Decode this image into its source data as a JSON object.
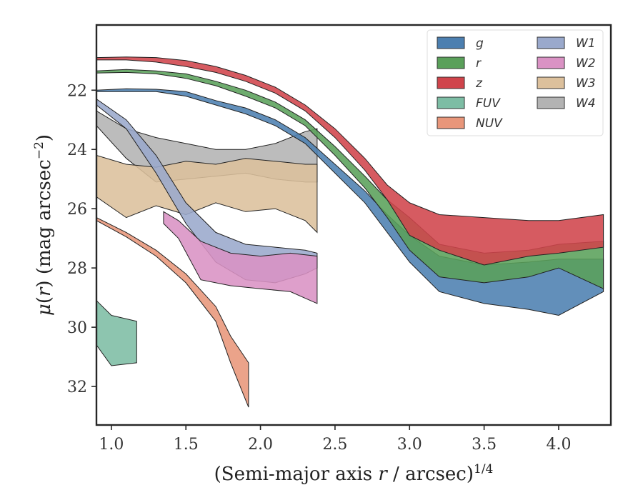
{
  "chart_data": {
    "type": "area",
    "xlabel": "(Semi-major axis r / arcsec)",
    "xlabel_parts": {
      "prefix": "(Semi-major axis ",
      "var": "r",
      "middle": " / arcsec)",
      "sup": "1/4"
    },
    "ylabel_parts": {
      "mu": "μ",
      "open": "(",
      "var": "r",
      "close": ")",
      "unit": " (mag arcsec",
      "sup": "−2",
      "end": ")"
    },
    "xlim": [
      0.9,
      4.35
    ],
    "ylim": [
      33.3,
      19.8
    ],
    "y_inverted": true,
    "xticks": [
      1.0,
      1.5,
      2.0,
      2.5,
      3.0,
      3.5,
      4.0
    ],
    "xtick_labels": [
      "1.0",
      "1.5",
      "2.0",
      "2.5",
      "3.0",
      "3.5",
      "4.0"
    ],
    "yticks": [
      22,
      24,
      26,
      28,
      30,
      32
    ],
    "ytick_labels": [
      "22",
      "24",
      "26",
      "28",
      "30",
      "32"
    ],
    "grid": false,
    "legend": {
      "location": "upper right",
      "columns": 2
    },
    "series": [
      {
        "name": "g",
        "color": "#4c7fb0",
        "upper": [
          [
            0.9,
            22.0
          ],
          [
            1.1,
            21.95
          ],
          [
            1.3,
            21.97
          ],
          [
            1.5,
            22.05
          ],
          [
            1.7,
            22.35
          ],
          [
            1.9,
            22.6
          ],
          [
            2.1,
            23.0
          ],
          [
            2.3,
            23.6
          ],
          [
            2.5,
            24.5
          ],
          [
            2.7,
            25.4
          ],
          [
            2.85,
            26.2
          ],
          [
            3.0,
            26.9
          ],
          [
            3.2,
            27.6
          ],
          [
            3.5,
            27.9
          ],
          [
            3.8,
            27.8
          ],
          [
            4.0,
            27.7
          ],
          [
            4.3,
            27.7
          ]
        ],
        "lower": [
          [
            0.9,
            22.05
          ],
          [
            1.1,
            22.05
          ],
          [
            1.3,
            22.05
          ],
          [
            1.5,
            22.2
          ],
          [
            1.7,
            22.5
          ],
          [
            1.9,
            22.8
          ],
          [
            2.1,
            23.2
          ],
          [
            2.3,
            23.8
          ],
          [
            2.5,
            24.8
          ],
          [
            2.7,
            25.8
          ],
          [
            2.85,
            26.8
          ],
          [
            3.0,
            27.8
          ],
          [
            3.2,
            28.8
          ],
          [
            3.5,
            29.2
          ],
          [
            3.8,
            29.4
          ],
          [
            4.0,
            29.6
          ],
          [
            4.3,
            28.8
          ]
        ]
      },
      {
        "name": "r",
        "color": "#5aa05a",
        "upper": [
          [
            0.9,
            21.35
          ],
          [
            1.1,
            21.3
          ],
          [
            1.3,
            21.35
          ],
          [
            1.5,
            21.45
          ],
          [
            1.7,
            21.7
          ],
          [
            1.9,
            22.0
          ],
          [
            2.1,
            22.4
          ],
          [
            2.3,
            23.0
          ],
          [
            2.5,
            23.9
          ],
          [
            2.7,
            24.9
          ],
          [
            2.85,
            25.7
          ],
          [
            3.0,
            26.3
          ],
          [
            3.2,
            27.2
          ],
          [
            3.5,
            27.5
          ],
          [
            3.8,
            27.4
          ],
          [
            4.0,
            27.2
          ],
          [
            4.3,
            27.1
          ]
        ],
        "lower": [
          [
            0.9,
            21.42
          ],
          [
            1.1,
            21.4
          ],
          [
            1.3,
            21.45
          ],
          [
            1.5,
            21.6
          ],
          [
            1.7,
            21.85
          ],
          [
            1.9,
            22.2
          ],
          [
            2.1,
            22.6
          ],
          [
            2.3,
            23.2
          ],
          [
            2.5,
            24.2
          ],
          [
            2.7,
            25.3
          ],
          [
            2.85,
            26.3
          ],
          [
            3.0,
            27.4
          ],
          [
            3.2,
            28.3
          ],
          [
            3.5,
            28.5
          ],
          [
            3.8,
            28.3
          ],
          [
            4.0,
            28.0
          ],
          [
            4.3,
            28.7
          ]
        ]
      },
      {
        "name": "z",
        "color": "#d0444b",
        "upper": [
          [
            0.9,
            20.9
          ],
          [
            1.1,
            20.88
          ],
          [
            1.3,
            20.9
          ],
          [
            1.5,
            21.0
          ],
          [
            1.7,
            21.2
          ],
          [
            1.9,
            21.5
          ],
          [
            2.1,
            21.9
          ],
          [
            2.3,
            22.5
          ],
          [
            2.5,
            23.3
          ],
          [
            2.7,
            24.3
          ],
          [
            2.85,
            25.2
          ],
          [
            3.0,
            25.8
          ],
          [
            3.2,
            26.2
          ],
          [
            3.5,
            26.3
          ],
          [
            3.8,
            26.4
          ],
          [
            4.0,
            26.4
          ],
          [
            4.3,
            26.2
          ]
        ],
        "lower": [
          [
            0.9,
            20.98
          ],
          [
            1.1,
            20.98
          ],
          [
            1.3,
            21.05
          ],
          [
            1.5,
            21.2
          ],
          [
            1.7,
            21.4
          ],
          [
            1.9,
            21.7
          ],
          [
            2.1,
            22.1
          ],
          [
            2.3,
            22.7
          ],
          [
            2.5,
            23.6
          ],
          [
            2.7,
            24.7
          ],
          [
            2.85,
            25.7
          ],
          [
            3.0,
            26.9
          ],
          [
            3.2,
            27.4
          ],
          [
            3.5,
            27.9
          ],
          [
            3.8,
            27.6
          ],
          [
            4.0,
            27.5
          ],
          [
            4.3,
            27.3
          ]
        ]
      },
      {
        "name": "FUV",
        "color": "#7dbda4",
        "upper": [
          [
            0.9,
            29.1
          ],
          [
            1.0,
            29.6
          ],
          [
            1.17,
            29.8
          ]
        ],
        "lower": [
          [
            0.9,
            30.6
          ],
          [
            1.0,
            31.3
          ],
          [
            1.17,
            31.2
          ]
        ]
      },
      {
        "name": "NUV",
        "color": "#e8967a",
        "upper": [
          [
            0.9,
            26.3
          ],
          [
            1.1,
            26.8
          ],
          [
            1.3,
            27.4
          ],
          [
            1.5,
            28.2
          ],
          [
            1.7,
            29.3
          ],
          [
            1.8,
            30.3
          ],
          [
            1.92,
            31.2
          ]
        ],
        "lower": [
          [
            0.9,
            26.4
          ],
          [
            1.1,
            26.95
          ],
          [
            1.3,
            27.6
          ],
          [
            1.5,
            28.5
          ],
          [
            1.7,
            29.8
          ],
          [
            1.8,
            31.2
          ],
          [
            1.92,
            32.7
          ]
        ]
      },
      {
        "name": "W1",
        "color": "#9aa9cc",
        "upper": [
          [
            0.9,
            22.3
          ],
          [
            1.1,
            23.0
          ],
          [
            1.3,
            24.2
          ],
          [
            1.5,
            25.8
          ],
          [
            1.7,
            26.8
          ],
          [
            1.9,
            27.2
          ],
          [
            2.1,
            27.3
          ],
          [
            2.3,
            27.4
          ],
          [
            2.38,
            27.5
          ]
        ],
        "lower": [
          [
            0.9,
            22.5
          ],
          [
            1.1,
            23.3
          ],
          [
            1.3,
            24.8
          ],
          [
            1.5,
            26.5
          ],
          [
            1.7,
            27.8
          ],
          [
            1.9,
            28.4
          ],
          [
            2.1,
            28.5
          ],
          [
            2.3,
            28.2
          ],
          [
            2.38,
            28.0
          ]
        ]
      },
      {
        "name": "W2",
        "color": "#da92c4",
        "upper": [
          [
            1.35,
            26.1
          ],
          [
            1.45,
            26.4
          ],
          [
            1.6,
            27.1
          ],
          [
            1.8,
            27.5
          ],
          [
            2.0,
            27.6
          ],
          [
            2.2,
            27.5
          ],
          [
            2.38,
            27.6
          ]
        ],
        "lower": [
          [
            1.35,
            26.5
          ],
          [
            1.45,
            27.0
          ],
          [
            1.6,
            28.4
          ],
          [
            1.8,
            28.6
          ],
          [
            2.0,
            28.7
          ],
          [
            2.2,
            28.8
          ],
          [
            2.38,
            29.2
          ]
        ]
      },
      {
        "name": "W3",
        "color": "#dcc09c",
        "upper": [
          [
            0.9,
            24.2
          ],
          [
            1.1,
            24.5
          ],
          [
            1.3,
            24.6
          ],
          [
            1.5,
            24.4
          ],
          [
            1.7,
            24.5
          ],
          [
            1.9,
            24.3
          ],
          [
            2.1,
            24.4
          ],
          [
            2.3,
            24.5
          ],
          [
            2.38,
            24.5
          ]
        ],
        "lower": [
          [
            0.9,
            25.6
          ],
          [
            1.1,
            26.3
          ],
          [
            1.3,
            25.9
          ],
          [
            1.5,
            26.2
          ],
          [
            1.7,
            25.8
          ],
          [
            1.9,
            26.1
          ],
          [
            2.1,
            26.0
          ],
          [
            2.3,
            26.4
          ],
          [
            2.38,
            26.8
          ]
        ]
      },
      {
        "name": "W4",
        "color": "#b3b3b3",
        "upper": [
          [
            0.9,
            22.7
          ],
          [
            1.1,
            23.3
          ],
          [
            1.3,
            23.6
          ],
          [
            1.5,
            23.8
          ],
          [
            1.7,
            24.0
          ],
          [
            1.9,
            24.0
          ],
          [
            2.1,
            23.8
          ],
          [
            2.3,
            23.4
          ],
          [
            2.38,
            23.3
          ]
        ],
        "lower": [
          [
            0.9,
            23.2
          ],
          [
            1.1,
            24.3
          ],
          [
            1.3,
            25.1
          ],
          [
            1.5,
            25.0
          ],
          [
            1.7,
            24.9
          ],
          [
            1.9,
            24.8
          ],
          [
            2.1,
            25.0
          ],
          [
            2.3,
            25.1
          ],
          [
            2.38,
            25.1
          ]
        ]
      }
    ]
  }
}
